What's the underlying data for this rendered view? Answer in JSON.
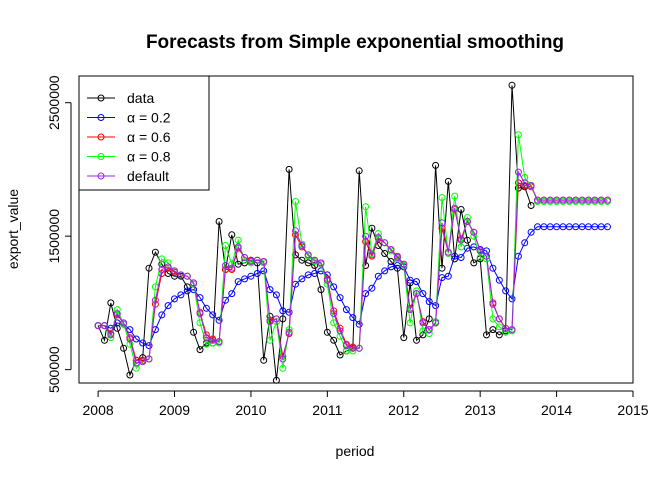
{
  "chart_data": {
    "type": "line",
    "title": "Forecasts from Simple exponential smoothing",
    "xlabel": "period",
    "ylabel": "export_value",
    "xlim": [
      2007.75,
      2015.0
    ],
    "ylim": [
      400000,
      2700000
    ],
    "x_ticks": [
      2008,
      2009,
      2010,
      2011,
      2012,
      2013,
      2014,
      2015
    ],
    "x_tick_labels": [
      "2008",
      "2009",
      "2010",
      "2011",
      "2012",
      "2013",
      "2014",
      "2015"
    ],
    "y_ticks": [
      500000,
      1500000,
      2500000
    ],
    "y_tick_labels": [
      "500000",
      "1500000",
      "2500000"
    ],
    "legend_position": "top-left",
    "grid": false,
    "time_start": 2008.0,
    "frequency": 12,
    "series": [
      {
        "name": "data",
        "color": "#000000",
        "values": [
          830000,
          720000,
          1000000,
          810000,
          660000,
          460000,
          570000,
          590000,
          1260000,
          1380000,
          1290000,
          1220000,
          1200000,
          1200000,
          1120000,
          780000,
          650000,
          700000,
          700000,
          1610000,
          1250000,
          1510000,
          1290000,
          1300000,
          1320000,
          1300000,
          570000,
          900000,
          420000,
          880000,
          2000000,
          1360000,
          1320000,
          1300000,
          1280000,
          1100000,
          780000,
          720000,
          610000,
          640000,
          660000,
          1990000,
          1280000,
          1560000,
          1430000,
          1370000,
          1310000,
          1260000,
          740000,
          1150000,
          720000,
          760000,
          880000,
          2030000,
          1260000,
          1910000,
          1330000,
          1700000,
          1470000,
          1300000,
          1330000,
          760000,
          800000,
          760000,
          790000,
          2630000,
          1860000,
          1870000,
          1730000
        ]
      },
      {
        "name": "α = 0.2",
        "color": "#0000ff",
        "values": [
          830000,
          830000,
          810000,
          850000,
          840000,
          800000,
          730000,
          700000,
          680000,
          800000,
          910000,
          980000,
          1030000,
          1060000,
          1090000,
          1100000,
          1040000,
          960000,
          910000,
          870000,
          1020000,
          1070000,
          1160000,
          1180000,
          1200000,
          1220000,
          1240000,
          1100000,
          1060000,
          940000,
          930000,
          1140000,
          1180000,
          1210000,
          1220000,
          1240000,
          1210000,
          1120000,
          1040000,
          950000,
          890000,
          840000,
          1070000,
          1110000,
          1200000,
          1240000,
          1270000,
          1280000,
          1270000,
          1170000,
          1160000,
          1070000,
          1010000,
          980000,
          1190000,
          1200000,
          1350000,
          1340000,
          1410000,
          1420000,
          1400000,
          1390000,
          1260000,
          1170000,
          1090000,
          1030000,
          1350000,
          1450000,
          1530000
        ],
        "forecast": [
          1570000,
          1570000,
          1570000,
          1570000,
          1570000,
          1570000,
          1570000,
          1570000,
          1570000,
          1570000,
          1570000,
          1570000
        ]
      },
      {
        "name": "α = 0.6",
        "color": "#ff0000",
        "values": [
          830000,
          830000,
          770000,
          910000,
          850000,
          740000,
          570000,
          570000,
          580000,
          990000,
          1220000,
          1260000,
          1230000,
          1210000,
          1200000,
          1150000,
          930000,
          760000,
          730000,
          710000,
          1250000,
          1250000,
          1410000,
          1340000,
          1320000,
          1320000,
          1310000,
          870000,
          880000,
          600000,
          770000,
          1510000,
          1420000,
          1360000,
          1320000,
          1300000,
          1180000,
          940000,
          810000,
          690000,
          670000,
          660000,
          1460000,
          1350000,
          1480000,
          1450000,
          1400000,
          1350000,
          1290000,
          960000,
          1070000,
          860000,
          800000,
          850000,
          1560000,
          1380000,
          1700000,
          1480000,
          1610000,
          1530000,
          1390000,
          1350000,
          1000000,
          880000,
          810000,
          800000,
          1900000,
          1880000,
          1870000
        ],
        "forecast": [
          1770000,
          1770000,
          1770000,
          1770000,
          1770000,
          1770000,
          1770000,
          1770000,
          1770000,
          1770000,
          1770000,
          1770000
        ]
      },
      {
        "name": "α = 0.8",
        "color": "#00ff00",
        "values": [
          830000,
          830000,
          740000,
          950000,
          840000,
          690000,
          510000,
          560000,
          580000,
          1120000,
          1330000,
          1300000,
          1240000,
          1210000,
          1200000,
          1140000,
          850000,
          690000,
          700000,
          700000,
          1430000,
          1290000,
          1470000,
          1320000,
          1300000,
          1320000,
          1300000,
          720000,
          860000,
          510000,
          800000,
          1760000,
          1440000,
          1350000,
          1310000,
          1290000,
          1140000,
          850000,
          750000,
          640000,
          640000,
          660000,
          1720000,
          1370000,
          1520000,
          1450000,
          1390000,
          1330000,
          1280000,
          850000,
          1090000,
          790000,
          770000,
          860000,
          1790000,
          1370000,
          1800000,
          1420000,
          1640000,
          1500000,
          1340000,
          1330000,
          880000,
          820000,
          780000,
          790000,
          2260000,
          1940000,
          1880000
        ],
        "forecast": [
          1760000,
          1760000,
          1760000,
          1760000,
          1760000,
          1760000,
          1760000,
          1760000,
          1760000,
          1760000,
          1760000,
          1760000
        ]
      },
      {
        "name": "default",
        "color": "#a020f0",
        "values": [
          830000,
          830000,
          760000,
          920000,
          850000,
          730000,
          550000,
          560000,
          580000,
          1020000,
          1250000,
          1270000,
          1240000,
          1210000,
          1200000,
          1150000,
          920000,
          740000,
          720000,
          710000,
          1280000,
          1260000,
          1420000,
          1340000,
          1310000,
          1320000,
          1310000,
          860000,
          880000,
          580000,
          780000,
          1540000,
          1430000,
          1360000,
          1320000,
          1300000,
          1170000,
          920000,
          790000,
          680000,
          660000,
          660000,
          1500000,
          1360000,
          1490000,
          1450000,
          1400000,
          1340000,
          1290000,
          950000,
          1070000,
          850000,
          800000,
          850000,
          1600000,
          1380000,
          1710000,
          1470000,
          1610000,
          1530000,
          1390000,
          1350000,
          990000,
          880000,
          810000,
          800000,
          1980000,
          1900000,
          1880000
        ],
        "forecast": [
          1770000,
          1770000,
          1770000,
          1770000,
          1770000,
          1770000,
          1770000,
          1770000,
          1770000,
          1770000,
          1770000,
          1770000
        ]
      }
    ],
    "legend_labels": [
      "data",
      "α = 0.2",
      "α = 0.6",
      "α = 0.8",
      "default"
    ]
  }
}
